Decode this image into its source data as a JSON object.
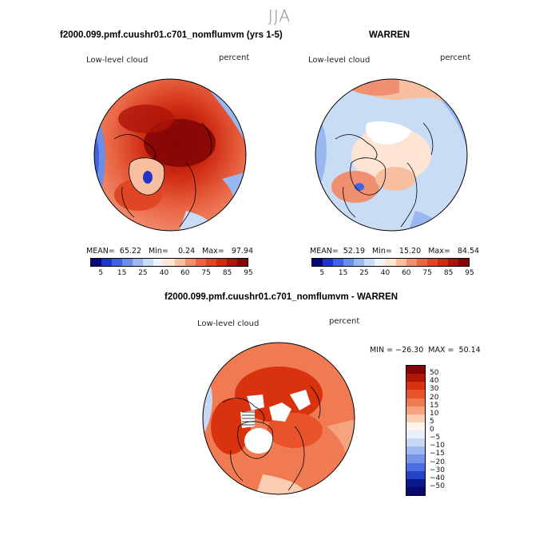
{
  "figure": {
    "season": "JJA",
    "bottom_title": "f2000.099.pmf.cuushr01.c701_nomflumvm - WARREN"
  },
  "panels": [
    {
      "title": "f2000.099.pmf.cuushr01.c701_nomflumvm (yrs 1-5)",
      "variable": "Low-level cloud",
      "units": "percent",
      "stats": "MEAN=  65.22   Min=    0.24   Max=   97.94",
      "colorbar_ticks": [
        "5",
        "15",
        "25",
        "40",
        "60",
        "75",
        "85",
        "95"
      ]
    },
    {
      "title": "WARREN",
      "variable": "Low-level cloud",
      "units": "percent",
      "stats": "MEAN=  52.19   Min=   15.20   Max=   84.54",
      "colorbar_ticks": [
        "5",
        "15",
        "25",
        "40",
        "60",
        "75",
        "85",
        "95"
      ]
    },
    {
      "title": "",
      "variable": "Low-level cloud",
      "units": "percent",
      "stats": "MIN = −26.30  MAX =  50.14",
      "colorbar_ticks": [
        "50",
        "40",
        "30",
        "20",
        "15",
        "10",
        "5",
        "0",
        "−5",
        "−10",
        "−15",
        "−20",
        "−30",
        "−40",
        "−50"
      ]
    }
  ],
  "colors": {
    "abs_scale": [
      "#08087a",
      "#1f35c9",
      "#3f62e0",
      "#6b8ee8",
      "#9ab8f0",
      "#c9dcf6",
      "#eef3fb",
      "#fde4d3",
      "#f8bea0",
      "#f19070",
      "#e96645",
      "#e04524",
      "#cf2a12",
      "#ac1408",
      "#850606"
    ],
    "diff_scale": [
      "#850606",
      "#b11707",
      "#d8320f",
      "#e8532a",
      "#f07b52",
      "#f6a47f",
      "#fbcdb0",
      "#fff4ec",
      "#eaf0fa",
      "#c7d8f4",
      "#9db9ef",
      "#7496e8",
      "#4b6fe0",
      "#2644c8",
      "#0a1a8c",
      "#0a0a6e"
    ]
  },
  "chart_data": [
    {
      "type": "heatmap",
      "projection": "north-polar-stereographic",
      "title": "f2000.099.pmf.cuushr01.c701_nomflumvm (yrs 1-5)",
      "variable": "Low-level cloud",
      "units": "percent",
      "summary": {
        "mean": 65.22,
        "min": 0.24,
        "max": 97.94
      },
      "color_levels": [
        5,
        15,
        25,
        40,
        60,
        75,
        85,
        95
      ]
    },
    {
      "type": "heatmap",
      "projection": "north-polar-stereographic",
      "title": "WARREN",
      "variable": "Low-level cloud",
      "units": "percent",
      "summary": {
        "mean": 52.19,
        "min": 15.2,
        "max": 84.54
      },
      "color_levels": [
        5,
        15,
        25,
        40,
        60,
        75,
        85,
        95
      ]
    },
    {
      "type": "heatmap",
      "projection": "north-polar-stereographic",
      "title": "f2000.099.pmf.cuushr01.c701_nomflumvm - WARREN",
      "variable": "Low-level cloud",
      "units": "percent",
      "summary": {
        "min": -26.3,
        "max": 50.14
      },
      "color_levels": [
        -50,
        -40,
        -30,
        -20,
        -15,
        -10,
        -5,
        0,
        5,
        10,
        15,
        20,
        30,
        40,
        50
      ]
    }
  ]
}
